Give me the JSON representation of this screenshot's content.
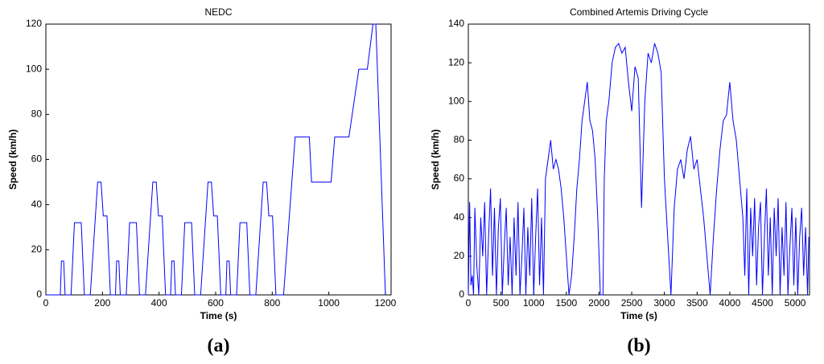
{
  "chart_data": [
    {
      "type": "line",
      "title": "NEDC",
      "x_label": "Time (s)",
      "y_label": "Speed (km/h)",
      "caption": "(a)",
      "xlim": [
        0,
        1220
      ],
      "ylim": [
        0,
        120
      ],
      "xticks": [
        0,
        200,
        400,
        600,
        800,
        1000,
        1200
      ],
      "yticks": [
        0,
        20,
        40,
        60,
        80,
        100,
        120
      ],
      "x": [
        0,
        40,
        51,
        55,
        63,
        68,
        89,
        101,
        125,
        136,
        157,
        183,
        195,
        203,
        216,
        228,
        235,
        246,
        250,
        258,
        263,
        284,
        296,
        320,
        331,
        352,
        378,
        390,
        398,
        411,
        423,
        430,
        441,
        445,
        453,
        458,
        479,
        491,
        515,
        526,
        547,
        573,
        585,
        593,
        606,
        618,
        625,
        636,
        640,
        648,
        653,
        674,
        686,
        710,
        721,
        742,
        768,
        780,
        788,
        801,
        813,
        820,
        840,
        881,
        931,
        939,
        1008,
        1021,
        1071,
        1106,
        1136,
        1156,
        1166,
        1200
      ],
      "series": [
        {
          "color": "#0000ff",
          "values": [
            0,
            0,
            0,
            15,
            15,
            0,
            0,
            32,
            32,
            0,
            0,
            50,
            50,
            35,
            35,
            0,
            0,
            0,
            15,
            15,
            0,
            0,
            32,
            32,
            0,
            0,
            50,
            50,
            35,
            35,
            0,
            0,
            0,
            15,
            15,
            0,
            0,
            32,
            32,
            0,
            0,
            50,
            50,
            35,
            35,
            0,
            0,
            0,
            15,
            15,
            0,
            0,
            32,
            32,
            0,
            0,
            50,
            50,
            35,
            35,
            0,
            0,
            0,
            70,
            70,
            50,
            50,
            70,
            70,
            100,
            100,
            120,
            120,
            0
          ]
        }
      ]
    },
    {
      "type": "line",
      "title": "Combined Artemis Driving Cycle",
      "x_label": "Time (s)",
      "y_label": "Speed (km/h)",
      "caption": "(b)",
      "xlim": [
        0,
        5220
      ],
      "ylim": [
        0,
        140
      ],
      "xticks": [
        0,
        500,
        1000,
        1500,
        2000,
        2500,
        3000,
        3500,
        4000,
        4500,
        5000
      ],
      "yticks": [
        0,
        20,
        40,
        60,
        80,
        100,
        120,
        140
      ],
      "x": [
        0,
        20,
        40,
        60,
        80,
        100,
        130,
        160,
        190,
        220,
        250,
        280,
        310,
        340,
        370,
        400,
        430,
        460,
        490,
        520,
        550,
        580,
        610,
        640,
        670,
        700,
        730,
        760,
        790,
        820,
        850,
        880,
        910,
        940,
        970,
        1000,
        1030,
        1060,
        1090,
        1120,
        1150,
        1180,
        1220,
        1260,
        1300,
        1340,
        1380,
        1420,
        1460,
        1500,
        1540,
        1580,
        1620,
        1660,
        1700,
        1740,
        1780,
        1820,
        1860,
        1900,
        1940,
        1980,
        2020,
        2060,
        2080,
        2110,
        2150,
        2200,
        2250,
        2300,
        2350,
        2400,
        2450,
        2500,
        2550,
        2600,
        2650,
        2700,
        2750,
        2800,
        2850,
        2900,
        2950,
        3000,
        3050,
        3100,
        3150,
        3200,
        3250,
        3300,
        3350,
        3400,
        3450,
        3500,
        3550,
        3600,
        3650,
        3700,
        3750,
        3800,
        3850,
        3900,
        3950,
        4000,
        4050,
        4100,
        4150,
        4200,
        4230,
        4260,
        4290,
        4320,
        4350,
        4380,
        4410,
        4440,
        4470,
        4500,
        4530,
        4560,
        4590,
        4620,
        4650,
        4680,
        4710,
        4740,
        4770,
        4800,
        4830,
        4860,
        4890,
        4920,
        4950,
        4980,
        5010,
        5040,
        5070,
        5100,
        5130,
        5160,
        5190,
        5210
      ],
      "series": [
        {
          "color": "#0000ff",
          "values": [
            0,
            48,
            5,
            10,
            0,
            45,
            15,
            0,
            40,
            20,
            48,
            0,
            30,
            55,
            10,
            45,
            0,
            35,
            50,
            0,
            25,
            45,
            5,
            30,
            0,
            40,
            10,
            48,
            0,
            20,
            45,
            0,
            35,
            10,
            50,
            0,
            30,
            55,
            5,
            40,
            0,
            60,
            70,
            80,
            65,
            70,
            65,
            55,
            40,
            20,
            0,
            10,
            30,
            55,
            70,
            90,
            100,
            110,
            90,
            85,
            70,
            40,
            0,
            0,
            60,
            90,
            100,
            120,
            128,
            130,
            125,
            128,
            110,
            95,
            118,
            112,
            45,
            100,
            125,
            120,
            130,
            125,
            115,
            60,
            30,
            0,
            45,
            65,
            70,
            60,
            75,
            82,
            65,
            70,
            55,
            40,
            20,
            0,
            30,
            55,
            75,
            90,
            93,
            110,
            90,
            80,
            60,
            40,
            10,
            55,
            0,
            45,
            20,
            50,
            5,
            35,
            48,
            0,
            30,
            55,
            10,
            40,
            0,
            45,
            20,
            50,
            0,
            35,
            10,
            48,
            0,
            25,
            45,
            5,
            40,
            0,
            30,
            45,
            10,
            35,
            0,
            30
          ]
        }
      ]
    }
  ]
}
